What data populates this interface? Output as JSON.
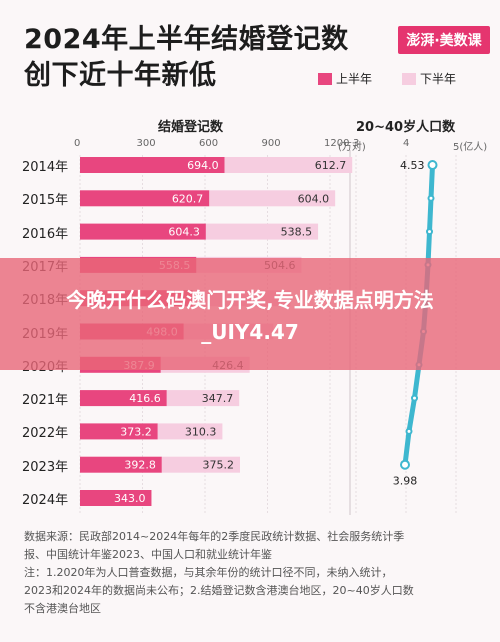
{
  "title_line1": "2024年上半年结婚登记数",
  "title_line2": "创下近十年新低",
  "brand": "澎湃·美数课",
  "legend": {
    "first_half": "上半年",
    "second_half": "下半年"
  },
  "colors": {
    "first_half": "#e8467f",
    "second_half": "#f6cde0",
    "population_line": "#3eb7cf",
    "banner": "#e86678"
  },
  "banner_text": "今晚开什么码澳门开奖,专业数据点明方法_UIY4.47",
  "chart_data": [
    {
      "type": "bar",
      "title": "结婚登记数",
      "unit": "(万对)",
      "stacked": true,
      "orientation": "horizontal",
      "categories": [
        "2014年",
        "2015年",
        "2016年",
        "2017年",
        "2018年",
        "2019年",
        "2020年",
        "2021年",
        "2022年",
        "2023年",
        "2024年"
      ],
      "xticks": [
        0,
        300,
        600,
        900,
        1200
      ],
      "xlim": [
        0,
        1200
      ],
      "series": [
        {
          "name": "上半年",
          "values": [
            694.0,
            620.7,
            604.3,
            558.5,
            540.0,
            498.0,
            387.9,
            416.6,
            373.2,
            392.8,
            343.0
          ],
          "labels": [
            "694.0",
            "620.7",
            "604.3",
            "558.5",
            "",
            "498.0",
            "387.9",
            "416.6",
            "373.2",
            "392.8",
            "343.0"
          ]
        },
        {
          "name": "下半年",
          "values": [
            612.7,
            604.0,
            538.5,
            504.6,
            470.0,
            430.0,
            426.4,
            347.7,
            310.3,
            375.2,
            null
          ],
          "labels": [
            "612.7",
            "604.0",
            "538.5",
            "504.6",
            "",
            "",
            "426.4",
            "347.7",
            "310.3",
            "375.2",
            ""
          ]
        }
      ]
    },
    {
      "type": "line",
      "title": "20~40岁人口数",
      "unit": "5(亿人)",
      "xticks": [
        3,
        4,
        5
      ],
      "xlim": [
        3,
        5
      ],
      "start_label": "4.53",
      "end_label": "3.98",
      "values": [
        4.53,
        4.5,
        4.47,
        4.44,
        4.4,
        4.35,
        4.26,
        4.17,
        4.06,
        3.98
      ]
    }
  ],
  "notes": [
    "数据来源：民政部2014~2024年每年的2季度民政统计数据、社会服务统计季",
    "报、中国统计年鉴2023、中国人口和就业统计年鉴",
    "注：1.2020年为人口普查数据，与其余年份的统计口径不同，未纳入统计，",
    "2023和2024年的数据尚未公布；2.结婚登记数含港澳台地区，20~40岁人口数",
    "不含港澳台地区"
  ]
}
